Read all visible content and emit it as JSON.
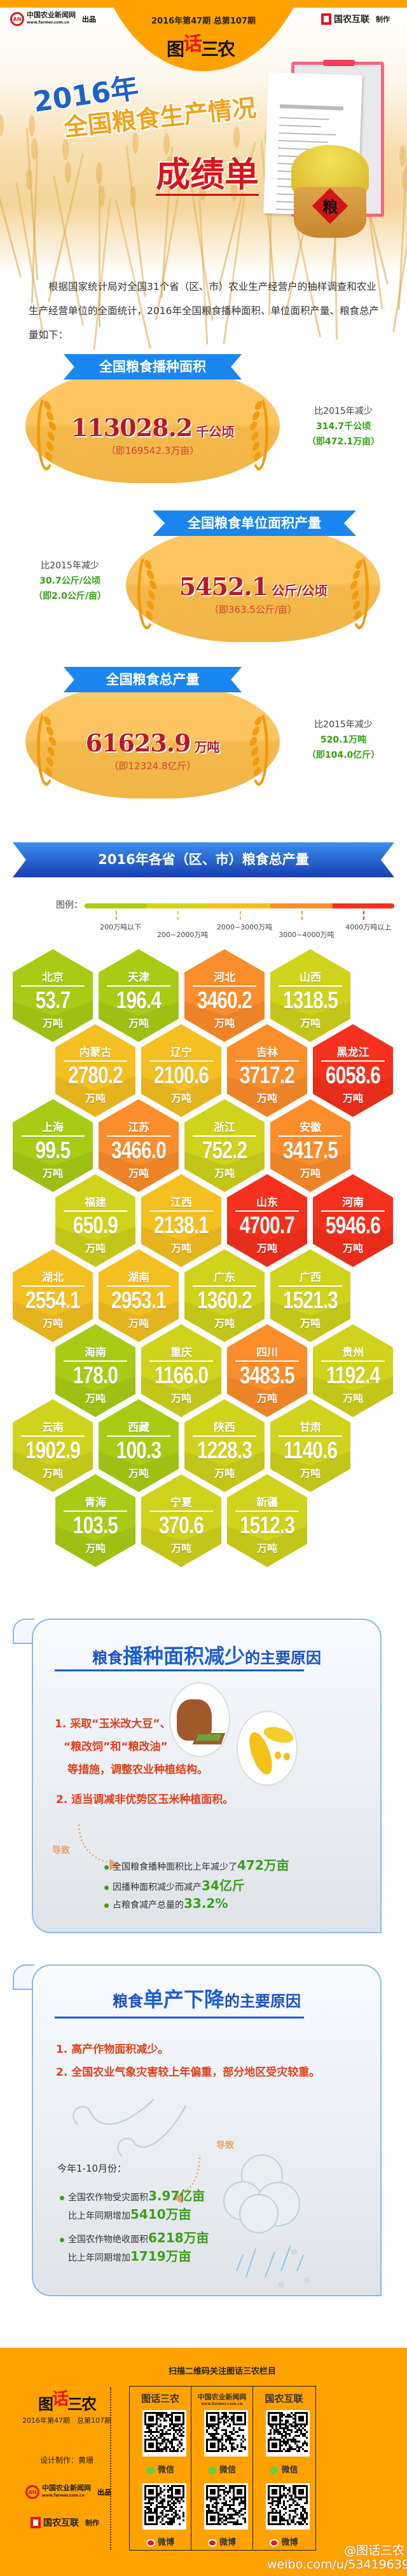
{
  "header": {
    "publisher": "中国农业新闻网",
    "publisher_url": "www.farmer.com.cn",
    "publisher_suffix": "出品",
    "issue": "2016年第47期   总第107期",
    "column_logo": {
      "a": "图",
      "b": "话",
      "c": "三农"
    },
    "maker": "国农互联",
    "maker_suffix": "制作"
  },
  "hero": {
    "year": "2016年",
    "title": "全国粮食生产情况",
    "subtitle": "成绩单",
    "sack_label": "粮"
  },
  "intro": "根据国家统计局对全国31个省（区、市）农业生产经营户的抽样调查和农业生产经营单位的全面统计，2016年全国粮食播种面积、单位面积产量、粮食总产量如下：",
  "stats": [
    {
      "title": "全国粮食播种面积",
      "value": "113028.2",
      "unit": "千公顷",
      "converted": "（即169542.3万亩）",
      "compare_label": "比2015年减少",
      "compare_value": "314.7千公顷",
      "compare_converted": "（即472.1万亩）"
    },
    {
      "title": "全国粮食单位面积产量",
      "value": "5452.1",
      "unit": "公斤/公顷",
      "converted": "（即363.5公斤/亩）",
      "compare_label": "比2015年减少",
      "compare_value": "30.7公斤/公顷",
      "compare_converted": "（即2.0公斤/亩）"
    },
    {
      "title": "全国粮食总产量",
      "value": "61623.9",
      "unit": "万吨",
      "converted": "（即12324.8亿斤）",
      "compare_label": "比2015年减少",
      "compare_value": "520.1万吨",
      "compare_converted": "（即104.0亿斤）"
    }
  ],
  "province_section": {
    "title": "2016年各省（区、市）粮食总产量",
    "legend_label": "图例：",
    "legend": [
      {
        "label": "200万吨以下",
        "min": 0,
        "max": 200,
        "color": "#a9cb16"
      },
      {
        "label": "200~2000万吨",
        "min": 200,
        "max": 2000,
        "color": "#cfd31b"
      },
      {
        "label": "2000~3000万吨",
        "min": 2000,
        "max": 3000,
        "color": "#f4bf20"
      },
      {
        "label": "3000~4000万吨",
        "min": 3000,
        "max": 4000,
        "color": "#fb8d2a"
      },
      {
        "label": "4000万吨以上",
        "min": 4000,
        "max": 100000,
        "color": "#f5301d"
      }
    ],
    "unit": "万吨",
    "provinces": [
      {
        "name": "北京",
        "value": "53.7"
      },
      {
        "name": "天津",
        "value": "196.4"
      },
      {
        "name": "河北",
        "value": "3460.2"
      },
      {
        "name": "山西",
        "value": "1318.5"
      },
      {
        "name": "内蒙古",
        "value": "2780.2"
      },
      {
        "name": "辽宁",
        "value": "2100.6"
      },
      {
        "name": "吉林",
        "value": "3717.2"
      },
      {
        "name": "黑龙江",
        "value": "6058.6"
      },
      {
        "name": "上海",
        "value": "99.5"
      },
      {
        "name": "江苏",
        "value": "3466.0"
      },
      {
        "name": "浙江",
        "value": "752.2"
      },
      {
        "name": "安徽",
        "value": "3417.5"
      },
      {
        "name": "福建",
        "value": "650.9"
      },
      {
        "name": "江西",
        "value": "2138.1"
      },
      {
        "name": "山东",
        "value": "4700.7"
      },
      {
        "name": "河南",
        "value": "5946.6"
      },
      {
        "name": "湖北",
        "value": "2554.1"
      },
      {
        "name": "湖南",
        "value": "2953.1"
      },
      {
        "name": "广东",
        "value": "1360.2"
      },
      {
        "name": "广西",
        "value": "1521.3"
      },
      {
        "name": "海南",
        "value": "178.0"
      },
      {
        "name": "重庆",
        "value": "1166.0"
      },
      {
        "name": "四川",
        "value": "3483.5"
      },
      {
        "name": "贵州",
        "value": "1192.4"
      },
      {
        "name": "云南",
        "value": "1902.9"
      },
      {
        "name": "西藏",
        "value": "100.3"
      },
      {
        "name": "陕西",
        "value": "1228.3"
      },
      {
        "name": "甘肃",
        "value": "1140.6"
      },
      {
        "name": "青海",
        "value": "103.5"
      },
      {
        "name": "宁夏",
        "value": "370.6"
      },
      {
        "name": "新疆",
        "value": "1512.3"
      }
    ]
  },
  "reason_area": {
    "title_prefix": "粮食",
    "title_emph": "播种面积减少",
    "title_suffix": "的主要原因",
    "item1_lines": [
      "1. 采取“玉米改大豆”、",
      "“粮改饲”和“粮改油”",
      "等措施，调整农业种植结构。"
    ],
    "item2": "2. 适当调减非优势区玉米种植面积。",
    "result_label": "导致",
    "bullets": [
      {
        "text": "全国粮食播种面积比上年减少了",
        "highlight": "472万亩"
      },
      {
        "text": "因播种面积减少而减产",
        "highlight": "34亿斤"
      },
      {
        "text": "占粮食减产总量的",
        "highlight": "33.2%"
      }
    ]
  },
  "reason_yield": {
    "title_prefix": "粮食",
    "title_emph": "单产下降",
    "title_suffix": "的主要原因",
    "item1": "1. 高产作物面积减少。",
    "item2": "2. 全国农业气象灾害较上年偏重，部分地区受灾较重。",
    "result_label": "导致",
    "period": "今年1-10月份：",
    "bullets": [
      {
        "text": "全国农作物受灾面积",
        "highlight": "3.97亿亩",
        "text2": "比上年同期增加",
        "highlight2": "5410万亩"
      },
      {
        "text": "全国农作物绝收面积",
        "highlight": "6218万亩",
        "text2": "比上年同期增加",
        "highlight2": "1719万亩"
      }
    ]
  },
  "footer": {
    "issue": "2016年第47期　总第107期",
    "designer": "设计制作：黄珊",
    "scan_title": "扫描二维码关注图话三农栏目",
    "columns": [
      {
        "brand": "图话三农"
      },
      {
        "brand": "中国农业新闻网",
        "sub": "www.farmer.com.cn"
      },
      {
        "brand": "国农互联"
      }
    ],
    "wechat_label": "微信",
    "weibo_label": "微博",
    "watermark_handle": "@图话三农",
    "watermark_url": "weibo.com/u/5341963972"
  },
  "colors": {
    "brand_orange": "#ffa200",
    "ribbon_blue": "#1a86f0",
    "value_red": "#b51a2a",
    "highlight_green": "#33a012",
    "reason_red": "#e0401c"
  }
}
